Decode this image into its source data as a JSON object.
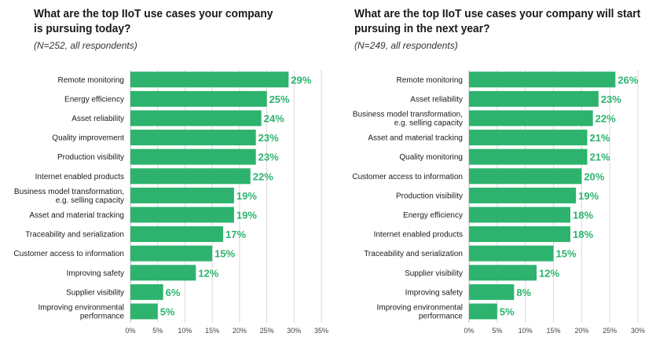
{
  "accent_color": "#2db36d",
  "chart_data": [
    {
      "type": "bar",
      "orientation": "horizontal",
      "title_lines": [
        "What are the top IIoT use cases your company",
        "is pursuing today?"
      ],
      "subtitle": "(N=252, all respondents)",
      "categories": [
        [
          "Remote monitoring"
        ],
        [
          "Energy efficiency"
        ],
        [
          "Asset reliability"
        ],
        [
          "Quality improvement"
        ],
        [
          "Production visibility"
        ],
        [
          "Internet enabled products"
        ],
        [
          "Business model transformation,",
          "e.g. selling capacity"
        ],
        [
          "Asset and material tracking"
        ],
        [
          "Traceability and serialization"
        ],
        [
          "Customer access to information"
        ],
        [
          "Improving safety"
        ],
        [
          "Supplier visibility"
        ],
        [
          "Improving environmental",
          "performance"
        ]
      ],
      "values": [
        29,
        25,
        24,
        23,
        23,
        22,
        19,
        19,
        17,
        15,
        12,
        6,
        5
      ],
      "value_labels": [
        "29%",
        "25%",
        "24%",
        "23%",
        "23%",
        "22%",
        "19%",
        "19%",
        "17%",
        "15%",
        "12%",
        "6%",
        "5%"
      ],
      "xlim": [
        0,
        35
      ],
      "xticks": [
        "0%",
        "5%",
        "10%",
        "15%",
        "20%",
        "25%",
        "30%",
        "35%"
      ],
      "grid": true
    },
    {
      "type": "bar",
      "orientation": "horizontal",
      "title_lines": [
        "What are the top IIoT use cases your company will start",
        "pursuing in the next year?"
      ],
      "subtitle": "(N=249, all respondents)",
      "categories": [
        [
          "Remote monitoring"
        ],
        [
          "Asset reliability"
        ],
        [
          "Business model transformation,",
          "e.g. selling capacity"
        ],
        [
          "Asset and material tracking"
        ],
        [
          "Quality monitoring"
        ],
        [
          "Customer access to information"
        ],
        [
          "Production visibility"
        ],
        [
          "Energy efficiency"
        ],
        [
          "Internet enabled products"
        ],
        [
          "Traceability and serialization"
        ],
        [
          "Supplier visibility"
        ],
        [
          "Improving safety"
        ],
        [
          "Improving environmental",
          "performance"
        ]
      ],
      "values": [
        26,
        23,
        22,
        21,
        21,
        20,
        19,
        18,
        18,
        15,
        12,
        8,
        5
      ],
      "value_labels": [
        "26%",
        "23%",
        "22%",
        "21%",
        "21%",
        "20%",
        "19%",
        "18%",
        "18%",
        "15%",
        "12%",
        "8%",
        "5%"
      ],
      "xlim": [
        0,
        30
      ],
      "xticks": [
        "0%",
        "5%",
        "10%",
        "15%",
        "20%",
        "25%",
        "30%"
      ],
      "grid": true
    }
  ]
}
